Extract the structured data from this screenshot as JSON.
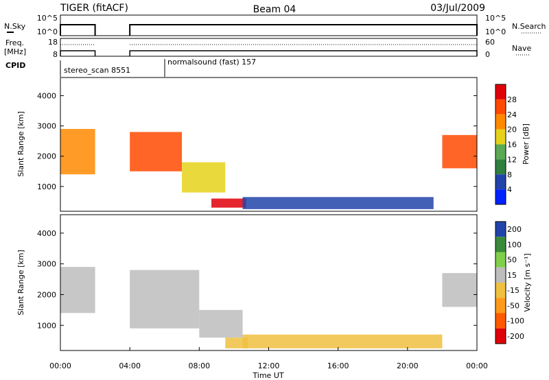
{
  "header": {
    "radar": "TIGER (fitACF)",
    "beam": "Beam 04",
    "date": "03/Jul/2009"
  },
  "sky_panel": {
    "left_label": "N.Sky",
    "right_label": "N.Search",
    "left_ticks": [
      "10^5",
      "10^0"
    ],
    "right_ticks": [
      "10^5",
      "10^0"
    ]
  },
  "freq_panel": {
    "left_label_1": "Freq.",
    "left_label_2": "[MHz]",
    "right_label": "Nave",
    "left_ticks": [
      "18",
      "8"
    ],
    "right_ticks": [
      "60",
      "0"
    ]
  },
  "cpid": {
    "label": "CPID",
    "segments": [
      {
        "name": "stereo_scan 8551"
      },
      {
        "name": "normalsound (fast) 157"
      }
    ]
  },
  "time_axis": {
    "label": "Time UT",
    "ticks": [
      "00:00",
      "04:00",
      "08:00",
      "12:00",
      "16:00",
      "20:00",
      "00:00"
    ]
  },
  "range_axis": {
    "label": "Slant Range [km]",
    "ticks": [
      "1000",
      "2000",
      "3000",
      "4000"
    ]
  },
  "chart_data": [
    {
      "type": "heatmap",
      "quantity": "Power",
      "colorbar_label": "Power [dB]",
      "colorbar_ticks": [
        "4",
        "8",
        "12",
        "16",
        "20",
        "24",
        "28"
      ],
      "colors": [
        "#0022ff",
        "#2244aa",
        "#2f7f3f",
        "#5aaa55",
        "#e6d21a",
        "#ff8a00",
        "#ff4a00",
        "#e0000a"
      ],
      "xlim_hours": [
        0,
        24
      ],
      "ylim_km": [
        180,
        4600
      ],
      "data_gap_hours": [
        2,
        4
      ],
      "regions": [
        {
          "t": [
            0.0,
            2.0
          ],
          "r": [
            1400,
            2900
          ],
          "value": 22
        },
        {
          "t": [
            4.0,
            7.0
          ],
          "r": [
            1500,
            2800
          ],
          "value": 25
        },
        {
          "t": [
            7.0,
            9.5
          ],
          "r": [
            800,
            1800
          ],
          "value": 18
        },
        {
          "t": [
            8.7,
            10.7
          ],
          "r": [
            300,
            600
          ],
          "value": 28
        },
        {
          "t": [
            10.5,
            21.5
          ],
          "r": [
            250,
            650
          ],
          "value": 6
        },
        {
          "t": [
            22.0,
            24.0
          ],
          "r": [
            1600,
            2700
          ],
          "value": 24
        }
      ]
    },
    {
      "type": "heatmap",
      "quantity": "Velocity",
      "colorbar_label": "Velocity [m s⁻¹]",
      "colorbar_ticks": [
        "200",
        "100",
        "50",
        "15",
        "-15",
        "-50",
        "-100",
        "-200"
      ],
      "colors": [
        "#2244aa",
        "#3b8a3b",
        "#7fcf4a",
        "#bdbdbd",
        "#f0c040",
        "#ff9a1a",
        "#ff5a00",
        "#e0000a"
      ],
      "xlim_hours": [
        0,
        24
      ],
      "ylim_km": [
        180,
        4600
      ],
      "data_gap_hours": [
        2,
        4
      ],
      "regions": [
        {
          "t": [
            0.0,
            2.0
          ],
          "r": [
            1400,
            2900
          ],
          "value": 0
        },
        {
          "t": [
            4.0,
            8.0
          ],
          "r": [
            900,
            2800
          ],
          "value": 0
        },
        {
          "t": [
            8.0,
            10.5
          ],
          "r": [
            600,
            1500
          ],
          "value": 20
        },
        {
          "t": [
            9.5,
            10.8
          ],
          "r": [
            250,
            600
          ],
          "value": -40
        },
        {
          "t": [
            10.5,
            22.0
          ],
          "r": [
            250,
            700
          ],
          "value": -20
        },
        {
          "t": [
            22.0,
            24.0
          ],
          "r": [
            1600,
            2700
          ],
          "value": 0
        }
      ]
    }
  ]
}
